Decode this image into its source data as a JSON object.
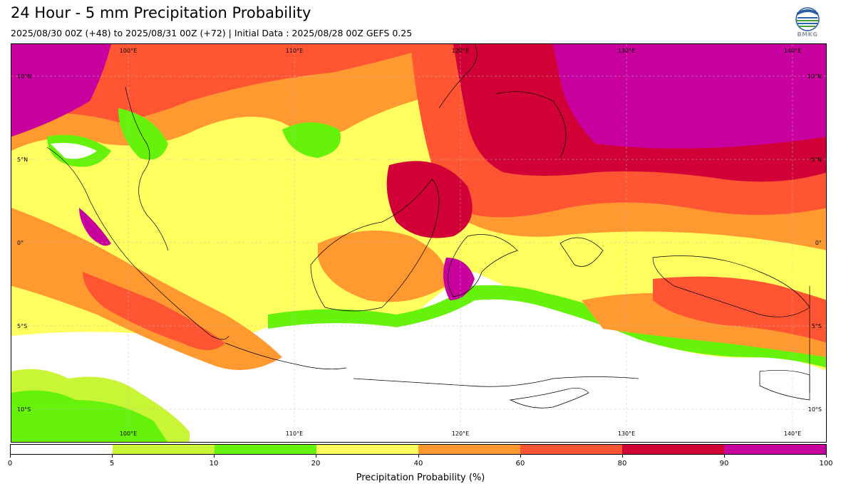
{
  "header": {
    "title": "24 Hour - 5 mm Precipitation Probability",
    "subtitle": "2025/08/30 00Z (+48) to 2025/08/31 00Z (+72) | Initial Data : 2025/08/28 00Z GEFS 0.25",
    "logo_text": "BMKG"
  },
  "map": {
    "lon_labels": [
      "100°E",
      "110°E",
      "120°E",
      "130°E",
      "140°E"
    ],
    "lat_labels_left": [
      "10°N",
      "5°N",
      "0°",
      "5°S",
      "10°S"
    ],
    "lat_labels_right": [
      "10°N",
      "5°N",
      "0°",
      "5°S",
      "10°S"
    ]
  },
  "colorbar": {
    "label": "Precipitation Probability (%)",
    "ticks": [
      "0",
      "5",
      "10",
      "20",
      "40",
      "60",
      "80",
      "90",
      "100"
    ],
    "colors": [
      "#ffffff",
      "#c8f535",
      "#66f20a",
      "#ffff60",
      "#ff9930",
      "#ff5533",
      "#d10036",
      "#c8009e"
    ]
  }
}
